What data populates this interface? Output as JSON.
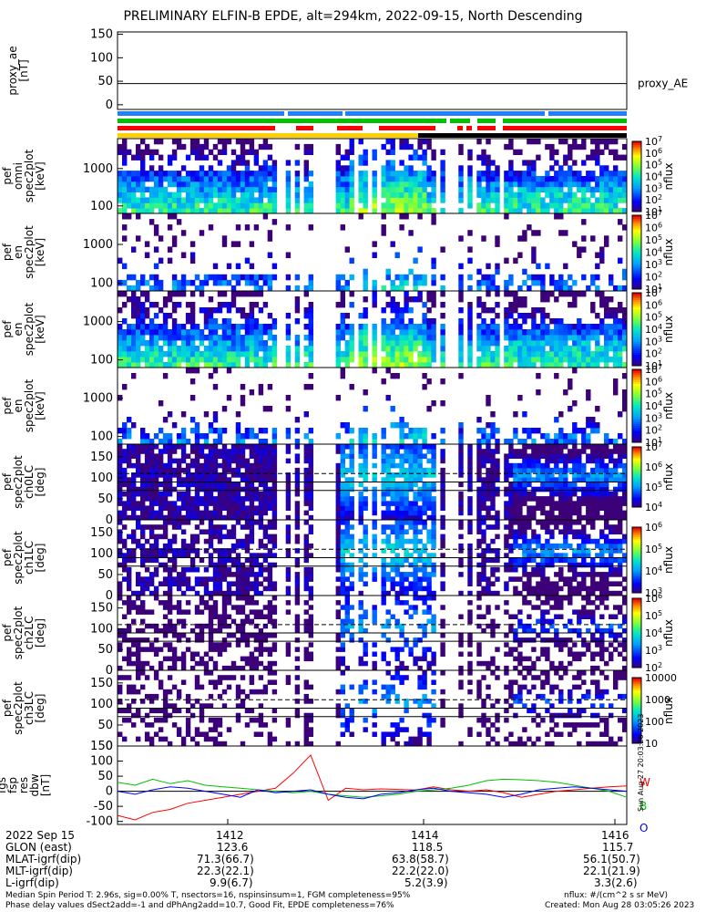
{
  "title": "PRELIMINARY ELFIN-B EPDE, alt=294km, 2022-09-15, North Descending",
  "colors": {
    "blue_bar": "#2080ff",
    "green_bar": "#00c000",
    "red_bar": "#ff0000",
    "yellow_bar": "#ffd000",
    "black_bar": "#000000",
    "zero_line": "#000000"
  },
  "chart_data": [
    {
      "type": "line",
      "panel": "proxy_ae",
      "ylabel": "proxy_ae\n[nT]",
      "yticks": [
        "150",
        "100",
        "50",
        "0"
      ],
      "ylim": [
        -10,
        155
      ],
      "series": [
        {
          "name": "proxy_AE",
          "values": [
            45,
            45
          ]
        }
      ]
    },
    {
      "type": "table",
      "panel": "status_bars",
      "rows": [
        "blue",
        "green",
        "red",
        "yellow-black"
      ]
    },
    {
      "type": "heatmap",
      "panel": "omni",
      "ylabel": "elb\npef\nomni\nspec2plot\n[keV]",
      "yticks": [
        "1000",
        "100"
      ],
      "colorbar": {
        "label": "nflux",
        "ticks": [
          "10^7",
          "10^6",
          "10^5",
          "10^4",
          "10^3",
          "10^2",
          "10^1"
        ]
      }
    },
    {
      "type": "heatmap",
      "panel": "para",
      "ylabel": "elb\npef\nen\nspec2plot\npara\n[keV]",
      "yticks": [
        "1000",
        "100"
      ],
      "colorbar": {
        "label": "nflux",
        "ticks": [
          "10^7",
          "10^6",
          "10^5",
          "10^4",
          "10^3",
          "10^2",
          "10^1"
        ]
      }
    },
    {
      "type": "heatmap",
      "panel": "perp",
      "ylabel": "elb\npef\nen\nspec2plot\nperp\n[keV]",
      "yticks": [
        "1000",
        "100"
      ],
      "colorbar": {
        "label": "nflux",
        "ticks": [
          "10^7",
          "10^6",
          "10^5",
          "10^4",
          "10^3",
          "10^2",
          "10^1"
        ]
      }
    },
    {
      "type": "heatmap",
      "panel": "anti",
      "ylabel": "elb\npef\nen\nspec2plot\nanti\n[keV]",
      "yticks": [
        "1000",
        "100"
      ],
      "colorbar": {
        "label": "nflux",
        "ticks": [
          "10^7",
          "10^6",
          "10^5",
          "10^4",
          "10^3",
          "10^2",
          "10^1"
        ]
      }
    },
    {
      "type": "heatmap",
      "panel": "ch0LC",
      "ylabel": "elb\npef\nspec2plot\nch0LC\n[deg]",
      "yticks": [
        "150",
        "100",
        "50",
        "0"
      ],
      "colorbar": {
        "label": "nflux",
        "ticks": [
          "10^7",
          "10^6",
          "10^5",
          "10^4"
        ]
      }
    },
    {
      "type": "heatmap",
      "panel": "ch1LC",
      "ylabel": "elb\npef\nspec2plot\nch1LC\n[deg]",
      "yticks": [
        "150",
        "100",
        "50",
        "0"
      ],
      "colorbar": {
        "label": "nflux",
        "ticks": [
          "10^6",
          "10^5",
          "10^4",
          "10^3"
        ]
      }
    },
    {
      "type": "heatmap",
      "panel": "ch2LC",
      "ylabel": "elb\npef\nspec2plot\nch2LC\n[deg]",
      "yticks": [
        "150",
        "100",
        "50",
        "0"
      ],
      "colorbar": {
        "label": "nflux",
        "ticks": [
          "10^6",
          "10^5",
          "10^4",
          "10^3",
          "10^2"
        ]
      }
    },
    {
      "type": "heatmap",
      "panel": "ch3LC",
      "ylabel": "elb\npef\nspec2plot\nch3LC\n[deg]",
      "yticks": [
        "150",
        "100",
        "50",
        "0"
      ],
      "colorbar": {
        "label": "nflux",
        "ticks": [
          "10000",
          "1000",
          "100",
          "10"
        ]
      }
    },
    {
      "type": "line",
      "panel": "fgs",
      "ylabel": "elb\nfgs\nfsp\nres\ndbw\n[nT]",
      "yticks": [
        "150",
        "100",
        "50",
        "0",
        "-50",
        "-100"
      ],
      "ylim": [
        -110,
        150
      ],
      "series": [
        {
          "name": "W",
          "color": "#ff0000",
          "values": [
            -80,
            -95,
            -70,
            -60,
            -40,
            -30,
            -20,
            -10,
            0,
            10,
            60,
            120,
            -30,
            10,
            5,
            8,
            6,
            4,
            15,
            5,
            0,
            5,
            -5,
            -20,
            -10,
            0,
            5,
            10,
            15,
            18
          ]
        },
        {
          "name": "B",
          "color": "#00c000",
          "values": [
            30,
            20,
            40,
            25,
            35,
            20,
            15,
            10,
            5,
            0,
            -5,
            0,
            -10,
            -15,
            -20,
            -15,
            -10,
            0,
            5,
            10,
            20,
            35,
            40,
            38,
            35,
            30,
            20,
            10,
            0,
            -20
          ]
        },
        {
          "name": "O",
          "color": "#0000ff",
          "values": [
            0,
            -10,
            5,
            15,
            10,
            0,
            -10,
            -20,
            5,
            -5,
            0,
            5,
            -10,
            -20,
            -25,
            -10,
            -5,
            5,
            10,
            0,
            -5,
            -10,
            -20,
            -10,
            5,
            10,
            15,
            10,
            5,
            0
          ]
        }
      ]
    }
  ],
  "panel_labels": {
    "proxy_ae": [
      "proxy_ae",
      "[nT]"
    ],
    "omni": [
      "elb",
      "pef",
      "omni",
      "spec2plot",
      "[keV]"
    ],
    "para": [
      "elb",
      "pef",
      "en",
      "spec2plot",
      "[keV]"
    ],
    "perp": [
      "elb",
      "pef",
      "en",
      "spec2plot",
      "[keV]"
    ],
    "anti": [
      "elb",
      "pef",
      "en",
      "spec2plot",
      "[keV]"
    ],
    "ch0": [
      "elb",
      "pef",
      "spec2plot",
      "ch0LC",
      "[deg]"
    ],
    "ch1": [
      "elb",
      "pef",
      "spec2plot",
      "ch1LC",
      "[deg]"
    ],
    "ch2": [
      "elb",
      "pef",
      "spec2plot",
      "ch2LC",
      "[deg]"
    ],
    "ch3": [
      "elb",
      "pef",
      "spec2plot",
      "ch3LC",
      "[deg]"
    ],
    "fgs": [
      "elb",
      "fgs",
      "fsp",
      "res",
      "dbw",
      "[nT]"
    ]
  },
  "legend_proxy": "proxy_AE",
  "legend_fgs": {
    "w": "W",
    "b": "B",
    "o": "O"
  },
  "side_note": "Sun Aug 27 20:03:26 2023",
  "xaxis": {
    "date": "2022 Sep 15",
    "rows": [
      {
        "label": "GLON (east)",
        "values": [
          "123.6",
          "118.5",
          "115.7"
        ]
      },
      {
        "label": "MLAT-igrf(dip)",
        "values": [
          "71.3(66.7)",
          "63.8(58.7)",
          "56.1(50.7)"
        ]
      },
      {
        "label": "MLT-igrf(dip)",
        "values": [
          "22.3(22.1)",
          "22.2(22.0)",
          "22.1(21.9)"
        ]
      },
      {
        "label": "L-igrf(dip)",
        "values": [
          "9.9(6.7)",
          "5.2(3.9)",
          "3.3(2.6)"
        ]
      }
    ],
    "ticks": [
      "1412",
      "1414",
      "1416"
    ]
  },
  "footer": {
    "line1": "Median Spin Period T: 2.96s, sig=0.00% T, nsectors=16, nspinsinsum=1, FGM completeness=95%",
    "line2": "Phase delay values dSect2add=-1 and dPhAng2add=10.7, Good Fit, EPDE completeness=76%",
    "right1": "nflux: #/(cm^2 s sr MeV)",
    "right2": "Created: Mon Aug 28 03:05:26 2023"
  }
}
